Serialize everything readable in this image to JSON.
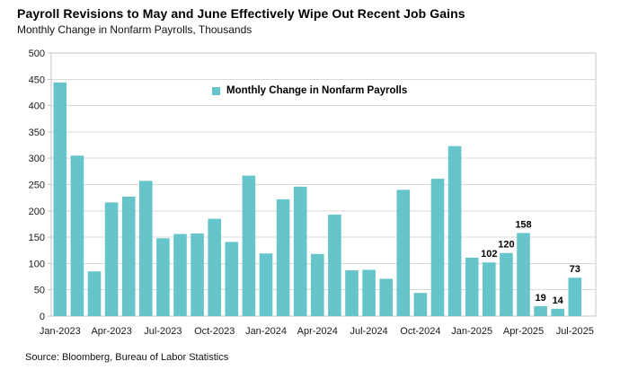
{
  "header": {
    "title": "Payroll Revisions to May and June Effectively Wipe Out Recent Job Gains",
    "subtitle": "Monthly Change in Nonfarm Payrolls, Thousands"
  },
  "legend": {
    "label": "Monthly Change in Nonfarm Payrolls"
  },
  "source": "Source: Bloomberg, Bureau of Labor Statistics",
  "colors": {
    "bar": "#66c4cb",
    "grid": "#d9d9d9",
    "border": "#c6c6c6",
    "axis_text": "#1a1a1a",
    "label_text": "#000000",
    "background": "#ffffff"
  },
  "chart_data": {
    "type": "bar",
    "title": "Payroll Revisions to May and June Effectively Wipe Out Recent Job Gains",
    "subtitle": "Monthly Change in Nonfarm Payrolls, Thousands",
    "ylabel": "Thousands",
    "xlabel": "",
    "ylim": [
      0,
      500
    ],
    "ytick_step": 50,
    "grid": "horizontal",
    "legend_position": "top-center-inside",
    "categories": [
      "Jan-2023",
      "Feb-2023",
      "Mar-2023",
      "Apr-2023",
      "May-2023",
      "Jun-2023",
      "Jul-2023",
      "Aug-2023",
      "Sep-2023",
      "Oct-2023",
      "Nov-2023",
      "Dec-2023",
      "Jan-2024",
      "Feb-2024",
      "Mar-2024",
      "Apr-2024",
      "May-2024",
      "Jun-2024",
      "Jul-2024",
      "Aug-2024",
      "Sep-2024",
      "Oct-2024",
      "Nov-2024",
      "Dec-2024",
      "Jan-2025",
      "Feb-2025",
      "Mar-2025",
      "Apr-2025",
      "May-2025",
      "Jun-2025",
      "Jul-2025"
    ],
    "values": [
      444,
      305,
      85,
      216,
      227,
      257,
      148,
      156,
      157,
      185,
      141,
      267,
      119,
      222,
      246,
      118,
      193,
      87,
      88,
      71,
      240,
      44,
      261,
      323,
      111,
      102,
      120,
      158,
      19,
      14,
      73
    ],
    "x_tick_every": 3,
    "x_tick_labels": [
      "Jan-2023",
      "Apr-2023",
      "Jul-2023",
      "Oct-2023",
      "Jan-2024",
      "Apr-2024",
      "Jul-2024",
      "Oct-2024",
      "Jan-2025",
      "Apr-2025",
      "Jul-2025"
    ],
    "labeled_indices": [
      25,
      26,
      27,
      28,
      29,
      30
    ],
    "data_labels": [
      "102",
      "120",
      "158",
      "19",
      "14",
      "73"
    ]
  }
}
